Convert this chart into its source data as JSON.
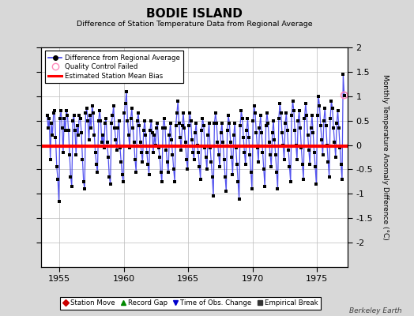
{
  "title": "BODIE ISLAND",
  "subtitle": "Difference of Station Temperature Data from Regional Average",
  "ylabel": "Monthly Temperature Anomaly Difference (°C)",
  "xlabel_years": [
    1955,
    1960,
    1965,
    1970,
    1975
  ],
  "xlim": [
    1953.6,
    1977.4
  ],
  "ylim": [
    -2.5,
    2.0
  ],
  "yticks_right": [
    -2.0,
    -1.5,
    -1.0,
    -0.5,
    0.0,
    0.5,
    1.0,
    1.5,
    2.0
  ],
  "bias_value": -0.02,
  "bias_color": "#FF0000",
  "line_color": "#4040EE",
  "dot_color": "#000000",
  "qc_fail_color": "#FF88BB",
  "bg_color": "#D8D8D8",
  "plot_bg_color": "#FFFFFF",
  "grid_color": "#BBBBBB",
  "watermark": "Berkeley Earth",
  "legend1_items": [
    {
      "label": "Difference from Regional Average"
    },
    {
      "label": "Quality Control Failed"
    },
    {
      "label": "Estimated Station Mean Bias"
    }
  ],
  "legend2_items": [
    {
      "label": "Station Move",
      "color": "#CC0000",
      "marker": "D"
    },
    {
      "label": "Record Gap",
      "color": "#008800",
      "marker": "^"
    },
    {
      "label": "Time of Obs. Change",
      "color": "#0000CC",
      "marker": "v"
    },
    {
      "label": "Empirical Break",
      "color": "#333333",
      "marker": "s"
    }
  ],
  "data_x": [
    1954.042,
    1954.125,
    1954.208,
    1954.292,
    1954.375,
    1954.458,
    1954.542,
    1954.625,
    1954.708,
    1954.792,
    1954.875,
    1954.958,
    1955.042,
    1955.125,
    1955.208,
    1955.292,
    1955.375,
    1955.458,
    1955.542,
    1955.625,
    1955.708,
    1955.792,
    1955.875,
    1955.958,
    1956.042,
    1956.125,
    1956.208,
    1956.292,
    1956.375,
    1956.458,
    1956.542,
    1956.625,
    1956.708,
    1956.792,
    1956.875,
    1956.958,
    1957.042,
    1957.125,
    1957.208,
    1957.292,
    1957.375,
    1957.458,
    1957.542,
    1957.625,
    1957.708,
    1957.792,
    1957.875,
    1957.958,
    1958.042,
    1958.125,
    1958.208,
    1958.292,
    1958.375,
    1958.458,
    1958.542,
    1958.625,
    1958.708,
    1958.792,
    1958.875,
    1958.958,
    1959.042,
    1959.125,
    1959.208,
    1959.292,
    1959.375,
    1959.458,
    1959.542,
    1959.625,
    1959.708,
    1959.792,
    1959.875,
    1959.958,
    1960.042,
    1960.125,
    1960.208,
    1960.292,
    1960.375,
    1960.458,
    1960.542,
    1960.625,
    1960.708,
    1960.792,
    1960.875,
    1960.958,
    1961.042,
    1961.125,
    1961.208,
    1961.292,
    1961.375,
    1961.458,
    1961.542,
    1961.625,
    1961.708,
    1961.792,
    1961.875,
    1961.958,
    1962.042,
    1962.125,
    1962.208,
    1962.292,
    1962.375,
    1962.458,
    1962.542,
    1962.625,
    1962.708,
    1962.792,
    1962.875,
    1962.958,
    1963.042,
    1963.125,
    1963.208,
    1963.292,
    1963.375,
    1963.458,
    1963.542,
    1963.625,
    1963.708,
    1963.792,
    1963.875,
    1963.958,
    1964.042,
    1964.125,
    1964.208,
    1964.292,
    1964.375,
    1964.458,
    1964.542,
    1964.625,
    1964.708,
    1964.792,
    1964.875,
    1964.958,
    1965.042,
    1965.125,
    1965.208,
    1965.292,
    1965.375,
    1965.458,
    1965.542,
    1965.625,
    1965.708,
    1965.792,
    1965.875,
    1965.958,
    1966.042,
    1966.125,
    1966.208,
    1966.292,
    1966.375,
    1966.458,
    1966.542,
    1966.625,
    1966.708,
    1966.792,
    1966.875,
    1966.958,
    1967.042,
    1967.125,
    1967.208,
    1967.292,
    1967.375,
    1967.458,
    1967.542,
    1967.625,
    1967.708,
    1967.792,
    1967.875,
    1967.958,
    1968.042,
    1968.125,
    1968.208,
    1968.292,
    1968.375,
    1968.458,
    1968.542,
    1968.625,
    1968.708,
    1968.792,
    1968.875,
    1968.958,
    1969.042,
    1969.125,
    1969.208,
    1969.292,
    1969.375,
    1969.458,
    1969.542,
    1969.625,
    1969.708,
    1969.792,
    1969.875,
    1969.958,
    1970.042,
    1970.125,
    1970.208,
    1970.292,
    1970.375,
    1970.458,
    1970.542,
    1970.625,
    1970.708,
    1970.792,
    1970.875,
    1970.958,
    1971.042,
    1971.125,
    1971.208,
    1971.292,
    1971.375,
    1971.458,
    1971.542,
    1971.625,
    1971.708,
    1971.792,
    1971.875,
    1971.958,
    1972.042,
    1972.125,
    1972.208,
    1972.292,
    1972.375,
    1972.458,
    1972.542,
    1972.625,
    1972.708,
    1972.792,
    1972.875,
    1972.958,
    1973.042,
    1973.125,
    1973.208,
    1973.292,
    1973.375,
    1973.458,
    1973.542,
    1973.625,
    1973.708,
    1973.792,
    1973.875,
    1973.958,
    1974.042,
    1974.125,
    1974.208,
    1974.292,
    1974.375,
    1974.458,
    1974.542,
    1974.625,
    1974.708,
    1974.792,
    1974.875,
    1974.958,
    1975.042,
    1975.125,
    1975.208,
    1975.292,
    1975.375,
    1975.458,
    1975.542,
    1975.625,
    1975.708,
    1975.792,
    1975.875,
    1975.958,
    1976.042,
    1976.125,
    1976.208,
    1976.292,
    1976.375,
    1976.458,
    1976.542,
    1976.625,
    1976.708,
    1976.792,
    1976.875,
    1976.958,
    1977.042,
    1977.125
  ],
  "data_y": [
    0.6,
    0.35,
    0.55,
    -0.3,
    0.45,
    0.2,
    0.65,
    0.7,
    0.15,
    -0.45,
    -0.7,
    -1.15,
    0.55,
    0.7,
    0.35,
    -0.15,
    0.55,
    0.3,
    0.7,
    0.6,
    0.3,
    -0.2,
    -0.65,
    -0.85,
    0.5,
    0.6,
    0.3,
    -0.2,
    0.4,
    0.2,
    0.6,
    0.55,
    0.25,
    -0.3,
    -0.75,
    -0.9,
    0.65,
    0.75,
    0.5,
    0.1,
    0.6,
    0.35,
    0.8,
    0.65,
    0.2,
    -0.15,
    -0.4,
    -0.55,
    0.5,
    0.7,
    0.5,
    0.05,
    0.2,
    -0.05,
    0.45,
    0.55,
    0.05,
    -0.25,
    -0.65,
    -0.8,
    0.45,
    0.6,
    0.8,
    0.35,
    0.1,
    -0.1,
    0.35,
    0.5,
    -0.05,
    -0.35,
    -0.6,
    -0.75,
    0.65,
    0.85,
    1.1,
    0.5,
    0.2,
    -0.05,
    0.55,
    0.75,
    0.35,
    0.05,
    -0.3,
    -0.55,
    0.5,
    0.65,
    0.4,
    0.05,
    -0.15,
    -0.35,
    0.3,
    0.5,
    0.2,
    -0.15,
    -0.4,
    -0.6,
    0.3,
    0.5,
    0.25,
    -0.15,
    0.2,
    0.0,
    0.35,
    0.45,
    -0.05,
    -0.25,
    -0.55,
    -0.75,
    0.35,
    0.55,
    0.35,
    -0.1,
    -0.35,
    -0.55,
    0.2,
    0.45,
    0.1,
    -0.2,
    -0.5,
    -0.75,
    0.4,
    0.65,
    0.9,
    0.45,
    0.15,
    -0.1,
    0.4,
    0.65,
    0.35,
    0.05,
    -0.3,
    -0.5,
    0.4,
    0.65,
    0.5,
    0.1,
    -0.15,
    -0.3,
    0.25,
    0.45,
    0.0,
    -0.15,
    -0.45,
    -0.7,
    0.3,
    0.55,
    0.4,
    -0.05,
    -0.25,
    -0.5,
    0.2,
    0.45,
    -0.05,
    -0.35,
    -0.65,
    -1.05,
    0.45,
    0.65,
    0.45,
    0.05,
    -0.2,
    -0.45,
    0.25,
    0.45,
    0.05,
    -0.3,
    -0.65,
    -0.95,
    0.3,
    0.6,
    0.45,
    0.05,
    -0.25,
    -0.6,
    0.2,
    0.45,
    -0.05,
    -0.4,
    -0.75,
    -1.1,
    0.4,
    0.7,
    0.55,
    0.15,
    -0.15,
    -0.4,
    0.3,
    0.55,
    0.15,
    -0.2,
    -0.55,
    -0.9,
    0.5,
    0.8,
    0.65,
    0.25,
    -0.05,
    -0.35,
    0.35,
    0.6,
    0.25,
    -0.15,
    -0.5,
    -0.85,
    0.4,
    0.65,
    0.45,
    0.05,
    -0.2,
    -0.45,
    0.25,
    0.5,
    0.1,
    -0.2,
    -0.55,
    -0.9,
    0.55,
    0.85,
    0.65,
    0.25,
    0.0,
    -0.3,
    0.45,
    0.65,
    0.3,
    -0.1,
    -0.45,
    -0.75,
    0.6,
    0.9,
    0.7,
    0.3,
    0.0,
    -0.3,
    0.5,
    0.7,
    0.35,
    -0.05,
    -0.4,
    -0.7,
    0.55,
    0.85,
    0.6,
    0.2,
    -0.1,
    -0.4,
    0.35,
    0.6,
    0.25,
    -0.15,
    -0.45,
    -0.8,
    0.6,
    1.0,
    0.8,
    0.4,
    0.1,
    -0.2,
    0.5,
    0.75,
    0.4,
    0.0,
    -0.35,
    -0.65,
    0.55,
    0.9,
    0.75,
    0.35,
    0.05,
    -0.25,
    0.45,
    0.7,
    0.35,
    -0.05,
    -0.4,
    -0.7,
    1.45,
    1.02
  ],
  "qc_fail_x": 1977.125,
  "qc_fail_y": 1.02
}
